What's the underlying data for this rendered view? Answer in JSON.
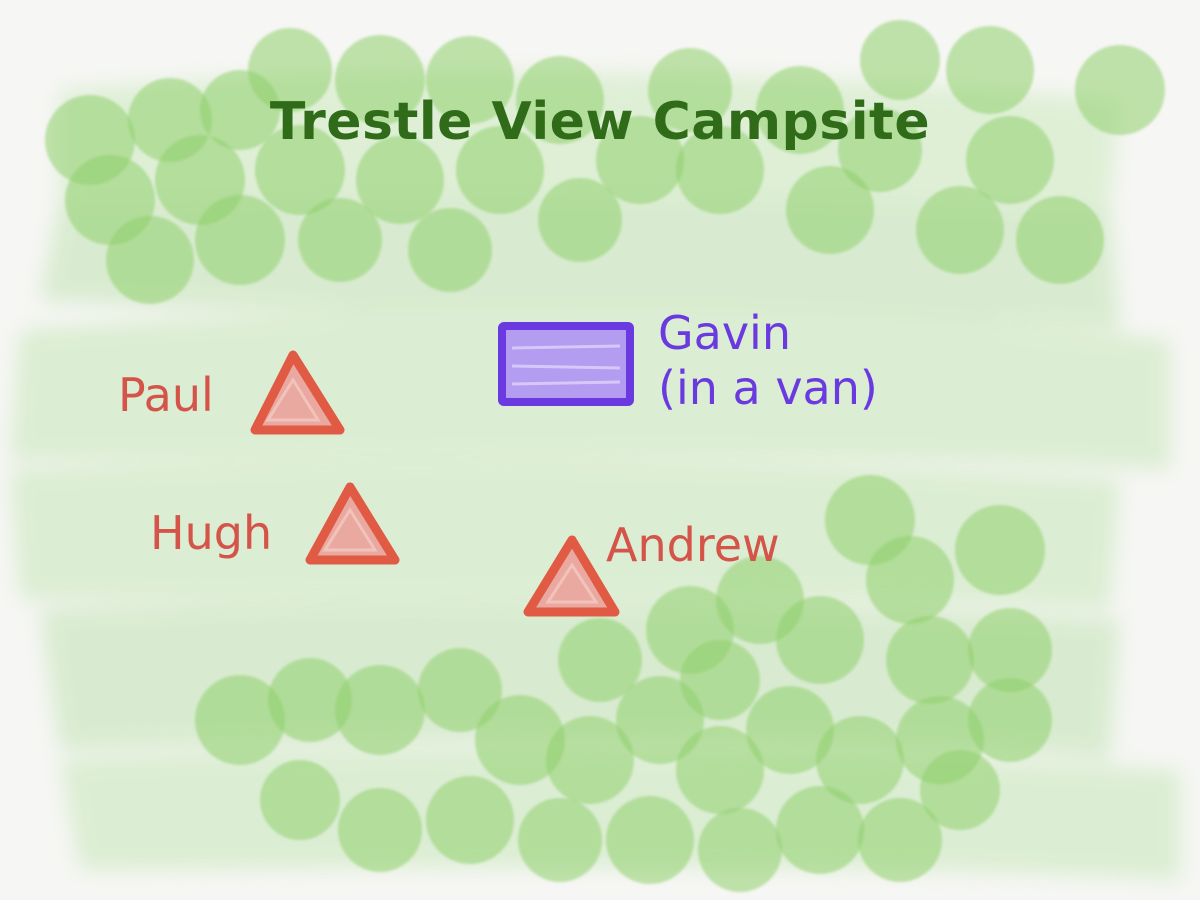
{
  "map": {
    "title": "Trestle View Campsite",
    "colors": {
      "background": "#f6f6f4",
      "meadow": "#cfe8c4",
      "tree": "#8fcf6c",
      "title": "#2f6b18",
      "tent": "#e05a44",
      "tent_fill": "#e9a8a0",
      "van": "#6a3ae0",
      "van_fill": "#b49cf0"
    },
    "campers": [
      {
        "name": "Paul",
        "shelter": "tent"
      },
      {
        "name": "Hugh",
        "shelter": "tent"
      },
      {
        "name": "Andrew",
        "shelter": "tent"
      },
      {
        "name": "Gavin",
        "shelter": "van",
        "note": "(in a van)"
      }
    ]
  }
}
